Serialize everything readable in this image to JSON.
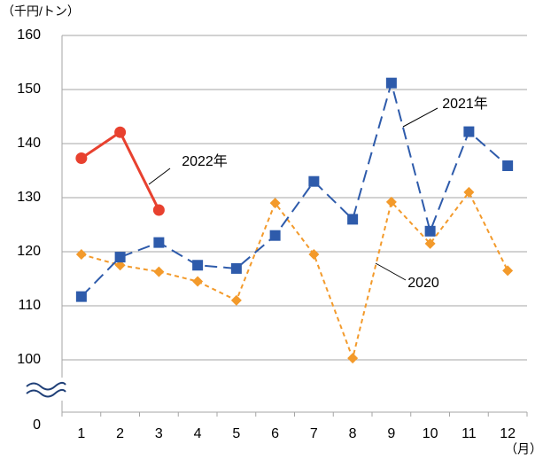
{
  "chart_data": {
    "type": "line",
    "y_unit_label": "（千円/トン）",
    "x_unit_label": "（月）",
    "categories": [
      "1",
      "2",
      "3",
      "4",
      "5",
      "6",
      "7",
      "8",
      "9",
      "10",
      "11",
      "12"
    ],
    "series": [
      {
        "name": "2020",
        "color": "#f39a2b",
        "dash": "dotted",
        "marker": "diamond",
        "values": [
          119.5,
          117.5,
          116.3,
          114.5,
          111,
          129,
          119.5,
          100.3,
          129.2,
          121.5,
          131,
          116.5
        ]
      },
      {
        "name": "2021年",
        "color": "#2e5bab",
        "dash": "dashed",
        "marker": "square",
        "values": [
          111.7,
          119,
          121.7,
          117.5,
          116.9,
          123,
          133,
          126,
          151.2,
          123.8,
          142.2,
          135.9
        ]
      },
      {
        "name": "2022年",
        "color": "#e8412f",
        "dash": "solid",
        "marker": "circle",
        "values": [
          137.3,
          142.1,
          127.7,
          null,
          null,
          null,
          null,
          null,
          null,
          null,
          null,
          null
        ]
      }
    ],
    "ylim": [
      100,
      160
    ],
    "yticks": [
      0,
      100,
      110,
      120,
      130,
      140,
      150,
      160
    ],
    "axis_break": true,
    "grid": true
  }
}
